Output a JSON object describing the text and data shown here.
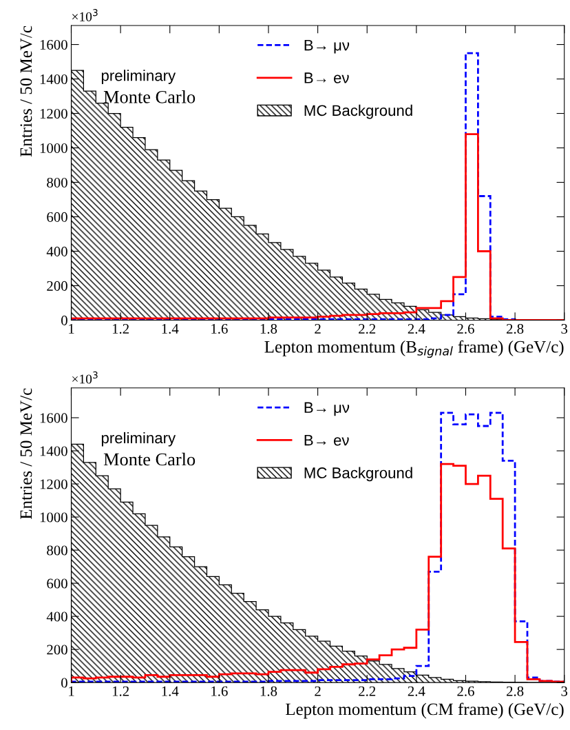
{
  "chart_data": [
    {
      "type": "histogram",
      "xlabel": "Lepton momentum (B$_{signal}$ frame) (GeV/c)",
      "ylabel": "Entries / 50 MeV/c",
      "annotations": [
        "×10$^{3}$",
        "preliminary",
        "Monte Carlo"
      ],
      "bins": [
        1.0,
        1.05,
        1.1,
        1.15,
        1.2,
        1.25,
        1.3,
        1.35,
        1.4,
        1.45,
        1.5,
        1.55,
        1.6,
        1.65,
        1.7,
        1.75,
        1.8,
        1.85,
        1.9,
        1.95,
        2.0,
        2.05,
        2.1,
        2.15,
        2.2,
        2.25,
        2.3,
        2.35,
        2.4,
        2.45,
        2.5,
        2.55,
        2.6,
        2.65,
        2.7,
        2.75,
        2.8,
        2.85,
        2.9,
        2.95,
        3.0
      ],
      "series": [
        {
          "name": "B→ μν",
          "color": "#0000ff",
          "line_style": "dashed",
          "values": [
            5,
            5,
            5,
            5,
            5,
            5,
            5,
            5,
            5,
            5,
            5,
            5,
            5,
            5,
            5,
            5,
            5,
            5,
            5,
            5,
            5,
            5,
            5,
            5,
            5,
            5,
            5,
            5,
            5,
            10,
            30,
            150,
            1550,
            720,
            20,
            5,
            0,
            0,
            0,
            0
          ]
        },
        {
          "name": "B→ eν",
          "color": "#ff0000",
          "line_style": "solid",
          "values": [
            10,
            10,
            10,
            10,
            10,
            10,
            10,
            10,
            10,
            10,
            10,
            10,
            10,
            10,
            10,
            10,
            15,
            15,
            15,
            15,
            20,
            25,
            30,
            30,
            35,
            40,
            40,
            45,
            70,
            70,
            110,
            250,
            1080,
            400,
            10,
            0,
            0,
            0,
            0,
            0
          ]
        },
        {
          "name": "MC Background",
          "color": "#000000",
          "values": [
            1450,
            1330,
            1260,
            1200,
            1120,
            1060,
            990,
            930,
            870,
            810,
            750,
            700,
            650,
            600,
            550,
            500,
            450,
            410,
            370,
            330,
            290,
            250,
            215,
            180,
            150,
            120,
            100,
            80,
            60,
            45,
            30,
            20,
            12,
            8,
            5,
            3,
            2,
            1,
            0,
            0
          ]
        }
      ],
      "xlim": [
        1,
        3
      ],
      "xticks": [
        1,
        1.2,
        1.4,
        1.6,
        1.8,
        2,
        2.2,
        2.4,
        2.6,
        2.8,
        3
      ],
      "ylim": [
        0,
        1710
      ],
      "yticks": [
        0,
        200,
        400,
        600,
        800,
        1000,
        1200,
        1400,
        1600
      ],
      "grid": false,
      "legend": "top"
    },
    {
      "type": "histogram",
      "xlabel": "Lepton momentum (CM frame) (GeV/c)",
      "ylabel": "Entries / 50 MeV/c",
      "annotations": [
        "×10$^{3}$",
        "preliminary",
        "Monte Carlo"
      ],
      "bins": [
        1.0,
        1.05,
        1.1,
        1.15,
        1.2,
        1.25,
        1.3,
        1.35,
        1.4,
        1.45,
        1.5,
        1.55,
        1.6,
        1.65,
        1.7,
        1.75,
        1.8,
        1.85,
        1.9,
        1.95,
        2.0,
        2.05,
        2.1,
        2.15,
        2.2,
        2.25,
        2.3,
        2.35,
        2.4,
        2.45,
        2.5,
        2.55,
        2.6,
        2.65,
        2.7,
        2.75,
        2.8,
        2.85,
        2.9,
        2.95,
        3.0
      ],
      "series": [
        {
          "name": "B→ μν",
          "color": "#0000ff",
          "line_style": "dashed",
          "values": [
            5,
            5,
            5,
            5,
            5,
            5,
            5,
            5,
            5,
            5,
            5,
            5,
            5,
            5,
            5,
            5,
            10,
            10,
            10,
            10,
            15,
            15,
            15,
            15,
            20,
            20,
            25,
            40,
            100,
            670,
            1630,
            1560,
            1620,
            1550,
            1630,
            1340,
            370,
            30,
            10,
            5
          ]
        },
        {
          "name": "B→ eν",
          "color": "#ff0000",
          "line_style": "solid",
          "values": [
            30,
            25,
            30,
            35,
            35,
            30,
            45,
            35,
            45,
            45,
            45,
            35,
            50,
            55,
            55,
            50,
            65,
            75,
            75,
            60,
            80,
            95,
            110,
            115,
            140,
            165,
            200,
            210,
            320,
            760,
            1320,
            1310,
            1200,
            1250,
            1110,
            810,
            245,
            20,
            10,
            5
          ]
        },
        {
          "name": "MC Background",
          "color": "#000000",
          "values": [
            1440,
            1330,
            1250,
            1170,
            1090,
            1020,
            950,
            880,
            820,
            760,
            700,
            640,
            590,
            540,
            490,
            440,
            400,
            360,
            320,
            280,
            250,
            220,
            190,
            160,
            130,
            110,
            85,
            65,
            45,
            30,
            20,
            12,
            8,
            5,
            3,
            2,
            1,
            0,
            0,
            0
          ]
        }
      ],
      "xlim": [
        1,
        3
      ],
      "xticks": [
        1,
        1.2,
        1.4,
        1.6,
        1.8,
        2,
        2.2,
        2.4,
        2.6,
        2.8,
        3
      ],
      "ylim": [
        0,
        1780
      ],
      "yticks": [
        0,
        200,
        400,
        600,
        800,
        1000,
        1200,
        1400,
        1600
      ],
      "grid": false,
      "legend": "top"
    }
  ]
}
